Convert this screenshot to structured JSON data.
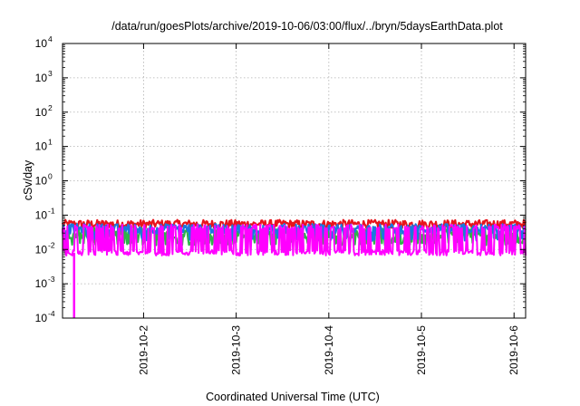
{
  "chart_data": {
    "type": "line",
    "title": "/data/run/goesPlots/archive/2019-10-06/03:00/flux/../bryn/5daysEarthData.plot",
    "xlabel": "Coordinated Universal Time (UTC)",
    "ylabel": "cSv/day",
    "yscale": "log",
    "ylim": [
      0.0001,
      10000
    ],
    "xlim": [
      "2019-10-01T03:00",
      "2019-10-06T03:00"
    ],
    "x_ticks": [
      "2019-10-2",
      "2019-10-3",
      "2019-10-4",
      "2019-10-5",
      "2019-10-6"
    ],
    "y_ticks": [
      {
        "base": "10",
        "exp": "-4",
        "value": 0.0001
      },
      {
        "base": "10",
        "exp": "-3",
        "value": 0.001
      },
      {
        "base": "10",
        "exp": "-2",
        "value": 0.01
      },
      {
        "base": "10",
        "exp": "-1",
        "value": 0.1
      },
      {
        "base": "10",
        "exp": "0",
        "value": 1
      },
      {
        "base": "10",
        "exp": "1",
        "value": 10
      },
      {
        "base": "10",
        "exp": "2",
        "value": 100
      },
      {
        "base": "10",
        "exp": "3",
        "value": 1000
      },
      {
        "base": "10",
        "exp": "4",
        "value": 10000
      }
    ],
    "grid": true,
    "sample_interval_hours": 1,
    "series": [
      {
        "color": "#e8141b",
        "typical": 0.055,
        "spread": 0.12,
        "low_frac": 0.0,
        "low_value": 0.05,
        "width": 2.2
      },
      {
        "color": "#2fb24a",
        "typical": 0.03,
        "spread": 0.15,
        "low_frac": 0.25,
        "low_value": 0.015,
        "width": 2.2
      },
      {
        "color": "#1a78e0",
        "typical": 0.04,
        "spread": 0.14,
        "low_frac": 0.15,
        "low_value": 0.02,
        "width": 2.2
      },
      {
        "color": "#ff00ff",
        "typical": 0.008,
        "spread": 0.08,
        "low_frac": 0.0,
        "low_value": 0.007,
        "spike_frac": 0.45,
        "spike_value": 0.045,
        "width": 2.0
      }
    ],
    "dropout": {
      "color": "#ff00ff",
      "x": "2019-10-01T06:00",
      "value": 0.0001
    }
  }
}
